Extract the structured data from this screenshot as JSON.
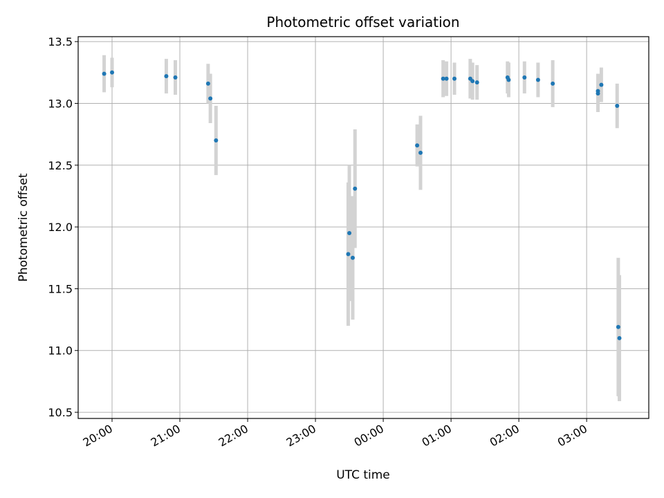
{
  "chart_data": {
    "type": "scatter",
    "title": "Photometric offset variation",
    "xlabel": "UTC time",
    "ylabel": "Photometric offset",
    "x_axis": {
      "kind": "time",
      "range": [
        "19:30",
        "27:55"
      ],
      "ticks": [
        {
          "t": "20:00",
          "label": "20:00"
        },
        {
          "t": "21:00",
          "label": "21:00"
        },
        {
          "t": "22:00",
          "label": "22:00"
        },
        {
          "t": "23:00",
          "label": "23:00"
        },
        {
          "t": "24:00",
          "label": "00:00"
        },
        {
          "t": "25:00",
          "label": "01:00"
        },
        {
          "t": "26:00",
          "label": "02:00"
        },
        {
          "t": "27:00",
          "label": "03:00"
        }
      ]
    },
    "ylim": [
      10.45,
      13.54
    ],
    "yticks": [
      10.5,
      11.0,
      11.5,
      12.0,
      12.5,
      13.0,
      13.5
    ],
    "ytick_labels": [
      "10.5",
      "11.0",
      "11.5",
      "12.0",
      "12.5",
      "13.0",
      "13.5"
    ],
    "grid": true,
    "colors": {
      "point": "#1f77b4",
      "errorbar": "#d3d3d3",
      "grid": "#b0b0b0"
    },
    "points": [
      {
        "t": "19:53",
        "y": 13.24,
        "err": 0.15
      },
      {
        "t": "20:00",
        "y": 13.25,
        "err": 0.12
      },
      {
        "t": "20:48",
        "y": 13.22,
        "err": 0.14
      },
      {
        "t": "20:56",
        "y": 13.21,
        "err": 0.14
      },
      {
        "t": "21:25",
        "y": 13.16,
        "err": 0.16
      },
      {
        "t": "21:27",
        "y": 13.04,
        "err": 0.2
      },
      {
        "t": "21:32",
        "y": 12.7,
        "err": 0.28
      },
      {
        "t": "23:29",
        "y": 11.78,
        "err": 0.58
      },
      {
        "t": "23:30",
        "y": 11.95,
        "err": 0.55
      },
      {
        "t": "23:33",
        "y": 11.75,
        "err": 0.5
      },
      {
        "t": "23:35",
        "y": 12.31,
        "err": 0.48
      },
      {
        "t": "24:30",
        "y": 12.66,
        "err": 0.17
      },
      {
        "t": "24:33",
        "y": 12.6,
        "err": 0.3
      },
      {
        "t": "24:53",
        "y": 13.2,
        "err": 0.15
      },
      {
        "t": "24:56",
        "y": 13.2,
        "err": 0.14
      },
      {
        "t": "25:03",
        "y": 13.2,
        "err": 0.13
      },
      {
        "t": "25:17",
        "y": 13.2,
        "err": 0.16
      },
      {
        "t": "25:19",
        "y": 13.18,
        "err": 0.15
      },
      {
        "t": "25:23",
        "y": 13.17,
        "err": 0.14
      },
      {
        "t": "25:50",
        "y": 13.21,
        "err": 0.13
      },
      {
        "t": "25:51",
        "y": 13.19,
        "err": 0.14
      },
      {
        "t": "26:05",
        "y": 13.21,
        "err": 0.13
      },
      {
        "t": "26:17",
        "y": 13.19,
        "err": 0.14
      },
      {
        "t": "26:30",
        "y": 13.16,
        "err": 0.19
      },
      {
        "t": "27:10",
        "y": 13.1,
        "err": 0.14
      },
      {
        "t": "27:10",
        "y": 13.08,
        "err": 0.15
      },
      {
        "t": "27:13",
        "y": 13.15,
        "err": 0.14
      },
      {
        "t": "27:27",
        "y": 12.98,
        "err": 0.18
      },
      {
        "t": "27:28",
        "y": 11.19,
        "err": 0.56
      },
      {
        "t": "27:29",
        "y": 11.1,
        "err": 0.51
      }
    ]
  }
}
